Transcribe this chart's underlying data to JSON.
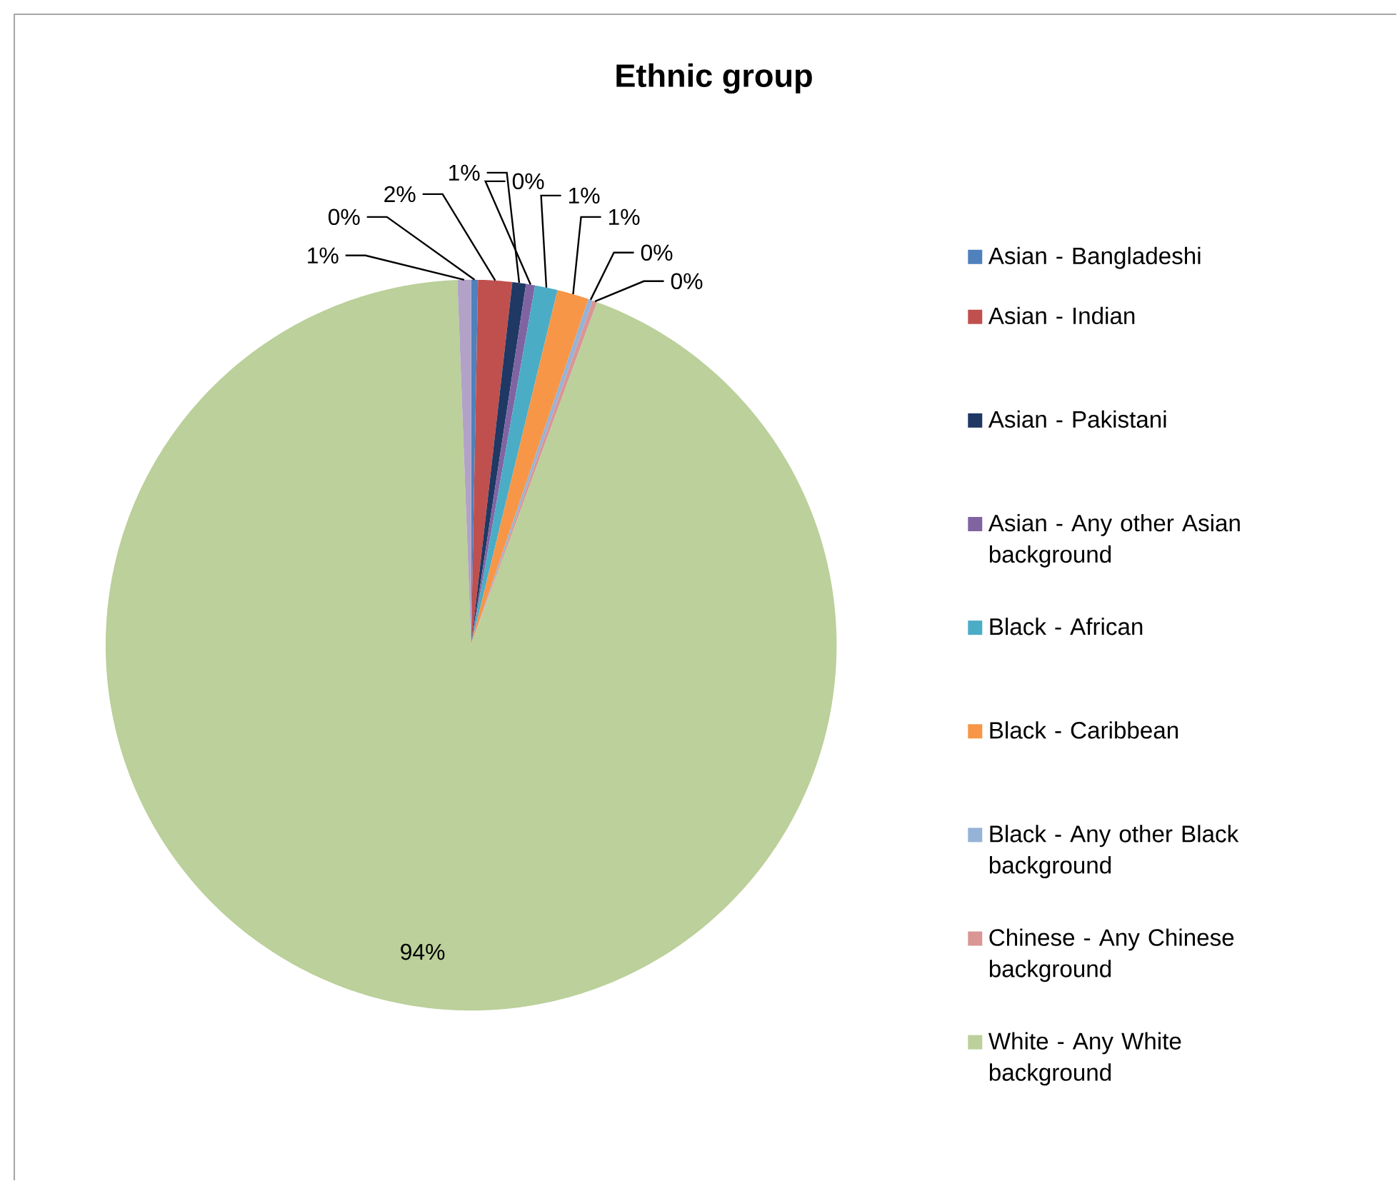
{
  "chart_data": {
    "type": "pie",
    "title": "Ethnic group",
    "categories": [
      "Asian - Bangladeshi",
      "Asian - Indian",
      "Asian - Pakistani",
      "Asian - Any other Asian background",
      "Black - African",
      "Black - Caribbean",
      "Black - Any other Black background",
      "Chinese - Any Chinese background",
      "White - Any White background",
      null
    ],
    "values": [
      0.3,
      1.5,
      0.6,
      0.4,
      1.0,
      1.4,
      0.2,
      0.2,
      93.8,
      0.6
    ],
    "value_labels": [
      "0%",
      "2%",
      "1%",
      "0%",
      "1%",
      "1%",
      "0%",
      "0%",
      "94%",
      "1%"
    ],
    "colors": [
      "#4f81bd",
      "#c0504d",
      "#1f3864",
      "#8064a2",
      "#4bacc6",
      "#f79646",
      "#95b3d7",
      "#d99694",
      "#bbd09a",
      "#b2a2c7"
    ],
    "legend": "right"
  }
}
